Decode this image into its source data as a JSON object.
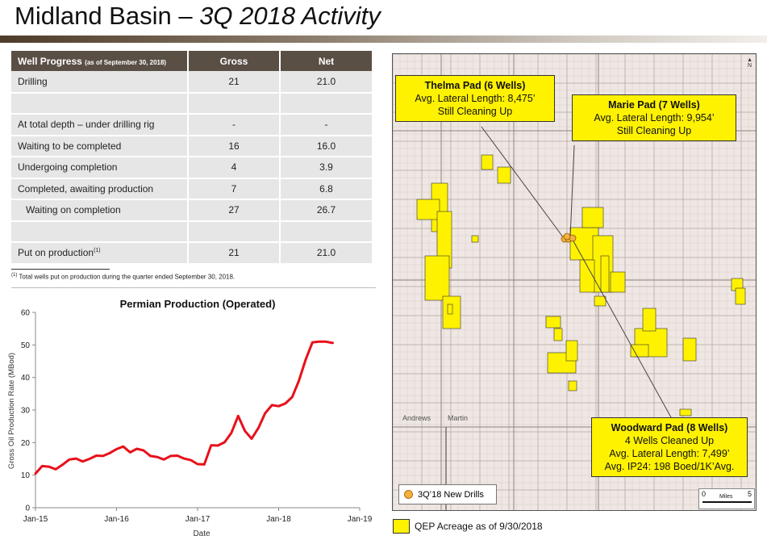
{
  "title": {
    "main": "Midland Basin – ",
    "sub": "3Q 2018 Activity"
  },
  "table": {
    "header": {
      "label": "Well Progress",
      "label_note": "(as of September 30, 2018)",
      "gross": "Gross",
      "net": "Net"
    },
    "rows": [
      {
        "label": "Drilling",
        "gross": "21",
        "net": "21.0"
      },
      {
        "label": "",
        "gross": "",
        "net": ""
      },
      {
        "label": "At total depth – under drilling rig",
        "gross": "-",
        "net": "-"
      },
      {
        "label": "Waiting to be completed",
        "gross": "16",
        "net": "16.0"
      },
      {
        "label": "Undergoing completion",
        "gross": "4",
        "net": "3.9"
      },
      {
        "label": "Completed, awaiting production",
        "gross": "7",
        "net": "6.8"
      },
      {
        "label": "Waiting on completion",
        "gross": "27",
        "net": "26.7"
      },
      {
        "label": "",
        "gross": "",
        "net": ""
      },
      {
        "label": "Put on production",
        "label_sup": "(1)",
        "gross": "21",
        "net": "21.0"
      }
    ],
    "footnote_sup": "(1)",
    "footnote": " Total wells put on production during the quarter ended September 30, 2018."
  },
  "chart_data": {
    "type": "line",
    "title": "Permian Production (Operated)",
    "xlabel": "Date",
    "ylabel": "Gross Oil Production Rate (MBod)",
    "ylim": [
      0,
      60
    ],
    "yticks": [
      0,
      10,
      20,
      30,
      40,
      50,
      60
    ],
    "xticks": [
      "Jan-15",
      "Jan-16",
      "Jan-17",
      "Jan-18",
      "Jan-19"
    ],
    "grid": false,
    "color": "#e8101a",
    "series": [
      {
        "x": [
          2015.0,
          2015.083,
          2015.167,
          2015.25,
          2015.333,
          2015.417,
          2015.5,
          2015.583,
          2015.667,
          2015.75,
          2015.833,
          2015.917,
          2016.0,
          2016.083,
          2016.167,
          2016.25,
          2016.333,
          2016.417,
          2016.5,
          2016.583,
          2016.667,
          2016.75,
          2016.833,
          2016.917,
          2017.0,
          2017.083,
          2017.167,
          2017.25,
          2017.333,
          2017.417,
          2017.5,
          2017.583,
          2017.667,
          2017.75,
          2017.833,
          2017.917,
          2018.0,
          2018.083,
          2018.167,
          2018.25,
          2018.333,
          2018.417,
          2018.5,
          2018.583,
          2018.667
        ],
        "y": [
          10.5,
          12.8,
          12.6,
          11.8,
          13.2,
          14.8,
          15.1,
          14.2,
          15.0,
          16.0,
          15.9,
          16.8,
          18.0,
          18.8,
          17.0,
          18.1,
          17.6,
          15.9,
          15.6,
          14.8,
          15.9,
          16.0,
          15.1,
          14.6,
          13.4,
          13.3,
          19.2,
          19.1,
          20.1,
          23.0,
          28.2,
          23.6,
          21.2,
          24.5,
          29.0,
          31.5,
          31.2,
          32.0,
          34.0,
          39.0,
          45.5,
          50.8,
          51.0,
          51.0,
          50.6
        ]
      }
    ]
  },
  "map": {
    "callouts": [
      {
        "title": "Thelma Pad (6 Wells)",
        "lines": [
          "Avg. Lateral Length: 8,475’",
          "Still Cleaning Up"
        ]
      },
      {
        "title": "Marie Pad (7 Wells)",
        "lines": [
          "Avg. Lateral Length: 9,954’",
          "Still Cleaning Up"
        ]
      },
      {
        "title": "Woodward Pad (8 Wells)",
        "lines": [
          "4 Wells Cleaned Up",
          "Avg. Lateral Length: 7,499’",
          "Avg. IP24: 198 Boed/1K’Avg."
        ]
      }
    ],
    "counties": [
      "Andrews",
      "Martin"
    ],
    "legend_new_drills": "3Q’18 New Drills",
    "scale": {
      "zero": "0",
      "label": "Miles",
      "max": "5"
    },
    "north": "N",
    "acreage_color": "#fff200",
    "new_drill_color": "#f6b13b"
  },
  "acreage_legend": "QEP Acreage as of 9/30/2018"
}
